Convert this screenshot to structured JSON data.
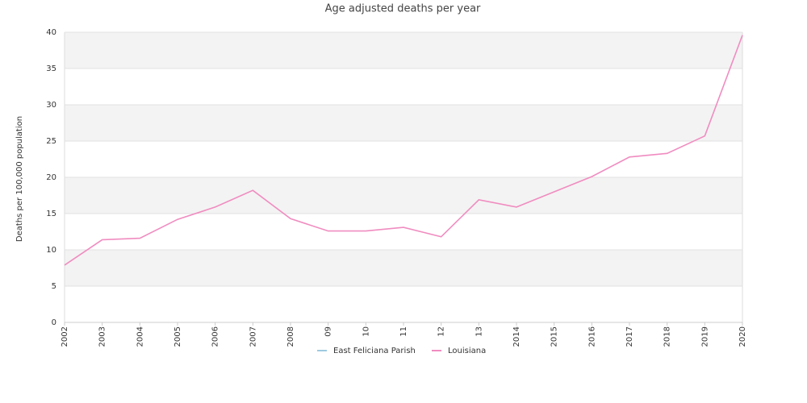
{
  "chart_data": {
    "type": "line",
    "title": "Age adjusted deaths per year",
    "y_label": "Deaths per 100,000 population",
    "categories": [
      "2002",
      "2003",
      "2004",
      "2005",
      "2006",
      "2007",
      "2008",
      "09",
      "10",
      "11",
      "12",
      "13",
      "2014",
      "2015",
      "2016",
      "2017",
      "2018",
      "2019",
      "2020"
    ],
    "series": [
      {
        "name": "East Feliciana Parish",
        "color": "#9ecae1",
        "values": [
          null,
          null,
          null,
          null,
          null,
          null,
          null,
          null,
          null,
          null,
          null,
          null,
          null,
          null,
          null,
          null,
          null,
          null,
          null
        ]
      },
      {
        "name": "Louisiana",
        "color": "#f08cc0",
        "values": [
          7.9,
          11.4,
          11.6,
          14.2,
          15.9,
          18.2,
          14.3,
          12.6,
          12.6,
          13.1,
          11.8,
          16.9,
          15.9,
          18.0,
          20.1,
          22.8,
          23.3,
          25.7,
          39.6
        ]
      }
    ],
    "ylim": [
      0,
      40
    ],
    "yticks": [
      0,
      5,
      10,
      15,
      20,
      25,
      30,
      35,
      40
    ],
    "grid": true,
    "legend": "bottom"
  }
}
